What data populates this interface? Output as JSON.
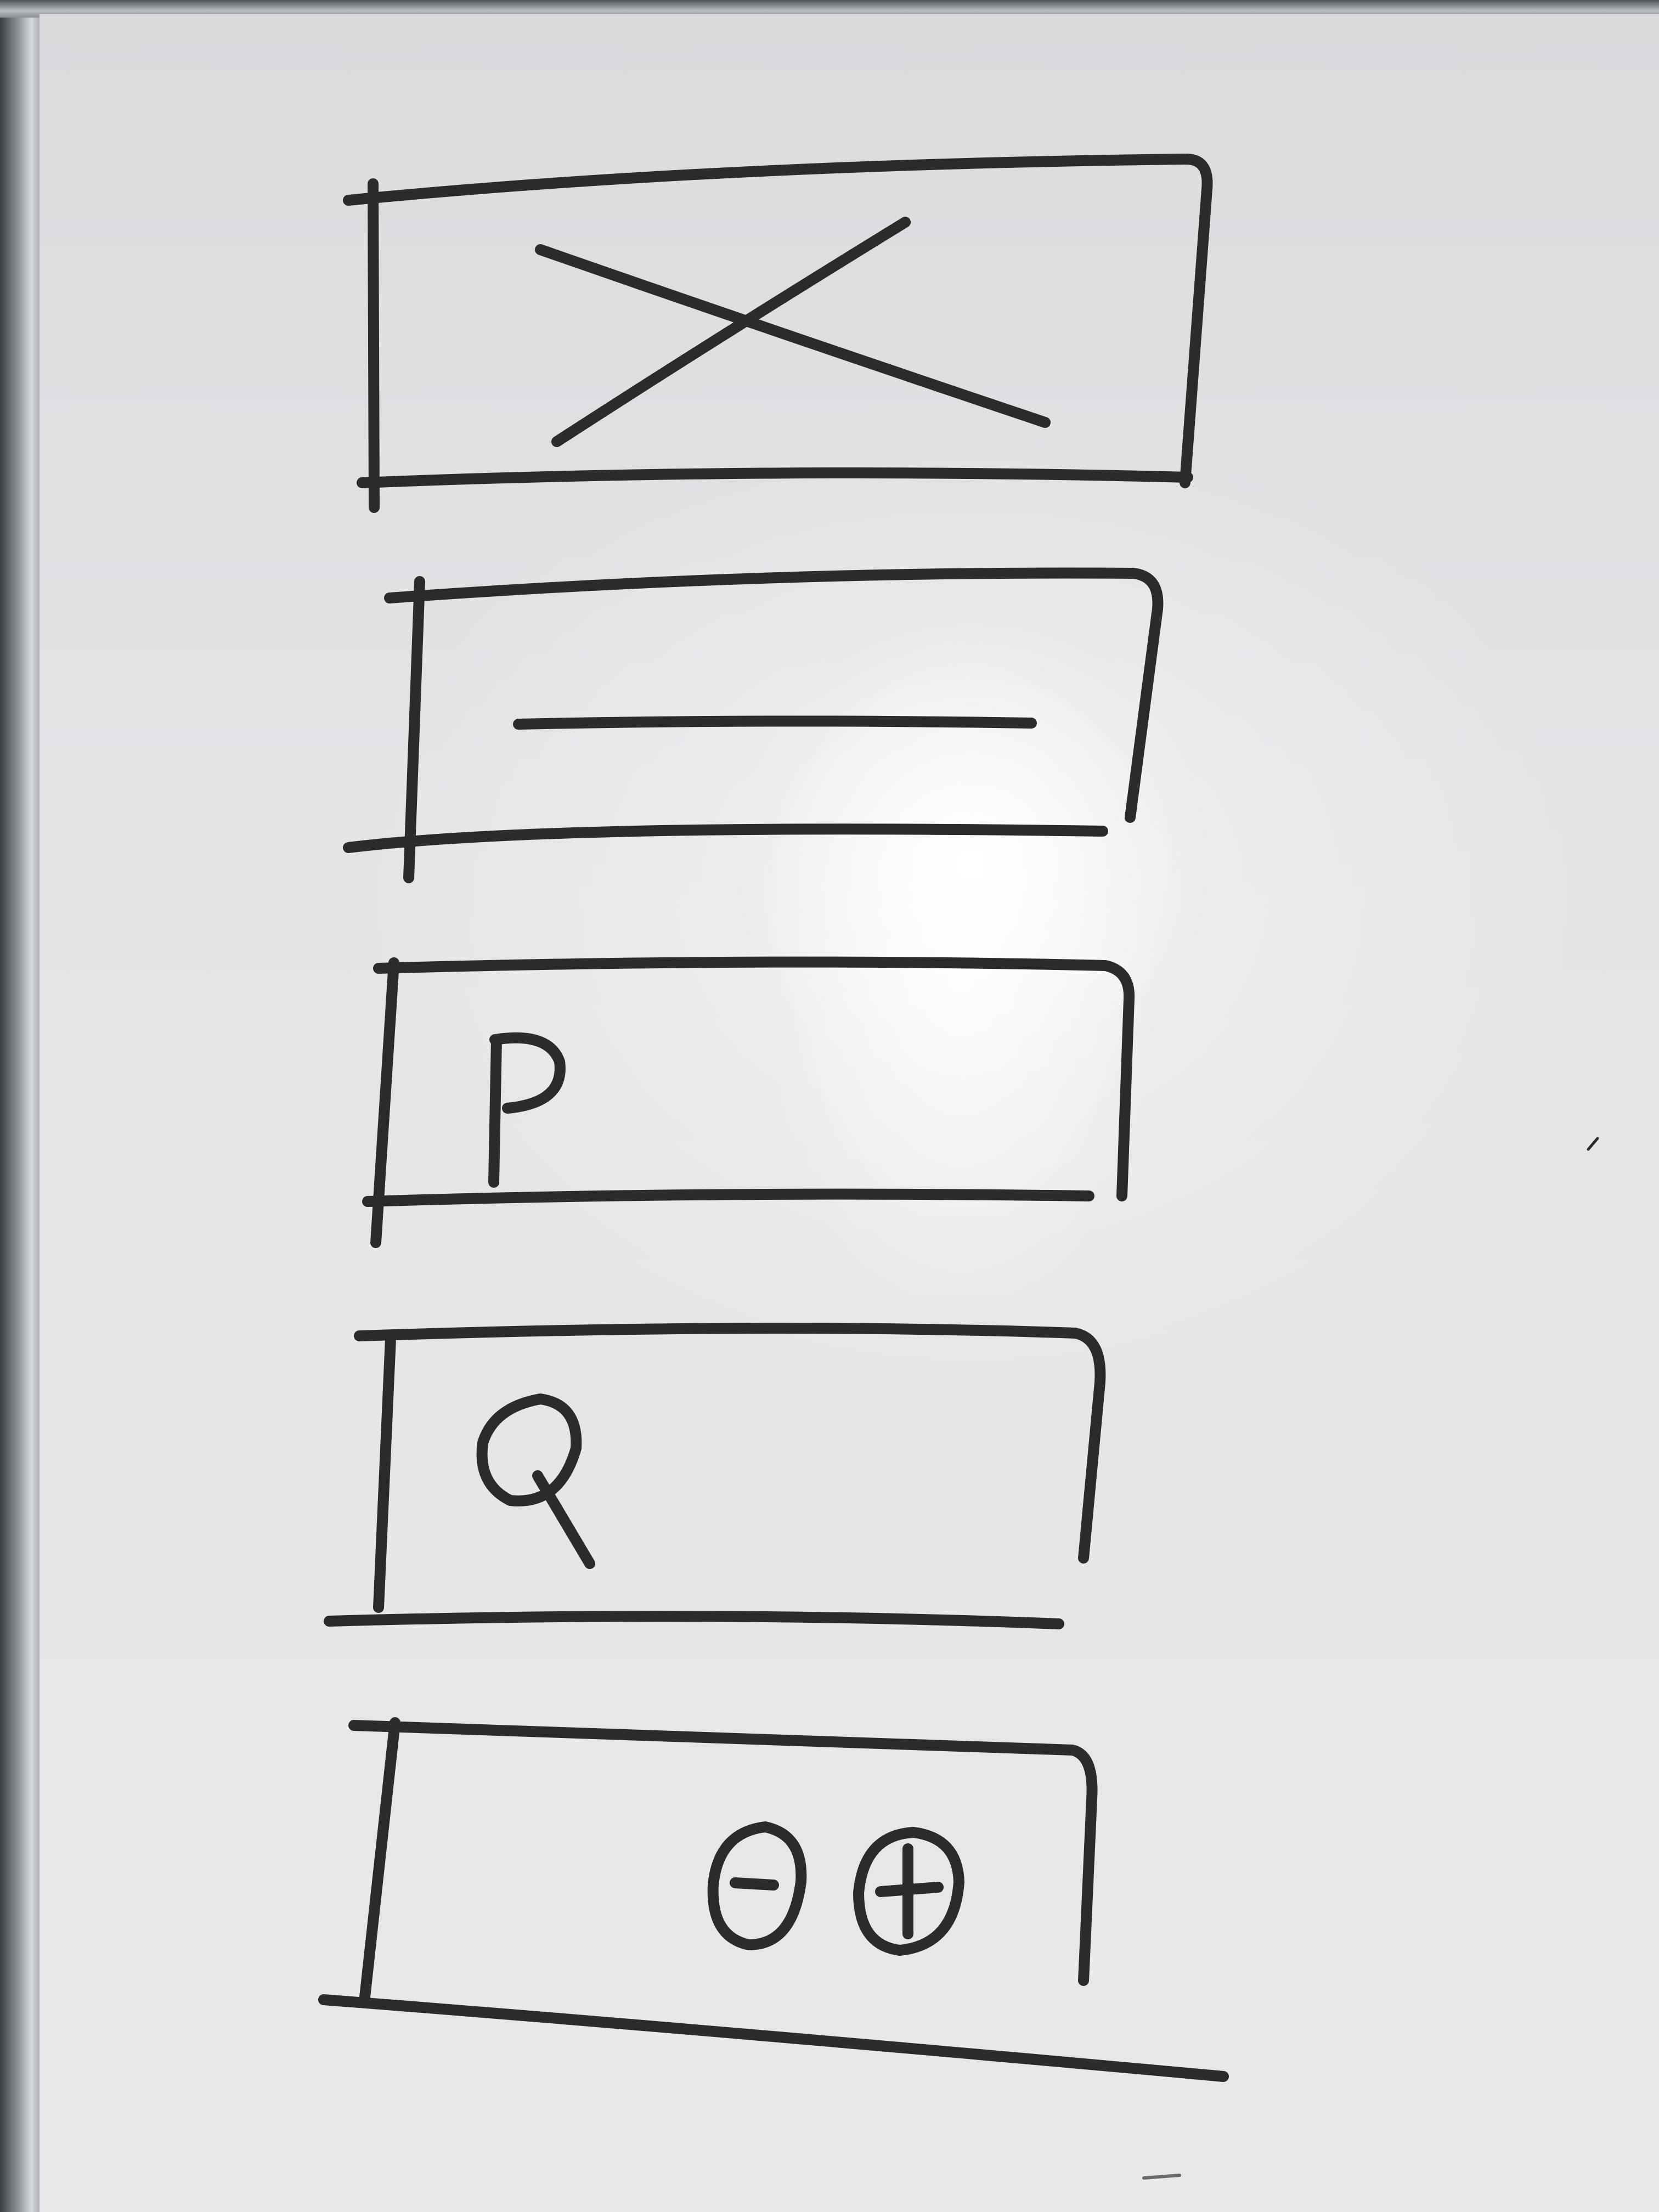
{
  "whiteboard": {
    "components": [
      {
        "kind": "image-placeholder",
        "glyph": ""
      },
      {
        "kind": "text-line-placeholder",
        "glyph": ""
      },
      {
        "kind": "letter-box",
        "glyph": "P"
      },
      {
        "kind": "search-box",
        "glyph": ""
      },
      {
        "kind": "zoom-controls",
        "glyph": ""
      }
    ],
    "icons": [
      "image-placeholder-icon",
      "text-line-icon",
      "search-icon",
      "zoom-out-icon",
      "zoom-in-icon"
    ]
  }
}
